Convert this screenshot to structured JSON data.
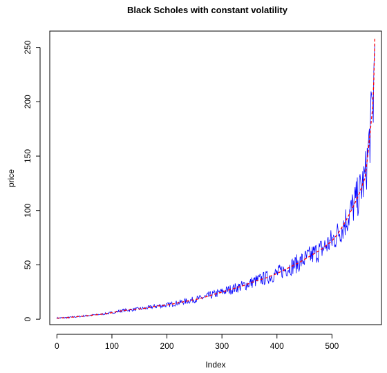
{
  "chart_data": {
    "type": "line",
    "title": "Black Scholes with constant volatility",
    "xlabel": "Index",
    "ylabel": "price",
    "xlim": [
      -13,
      590
    ],
    "ylim": [
      -5,
      265
    ],
    "x_ticks": [
      0,
      100,
      200,
      300,
      400,
      500
    ],
    "x_tick_labels": [
      "0",
      "100",
      "200",
      "300",
      "400",
      "500"
    ],
    "y_ticks": [
      0,
      50,
      100,
      150,
      200,
      250
    ],
    "y_tick_labels": [
      "0",
      "50",
      "100",
      "150",
      "200",
      "250"
    ],
    "grid": false,
    "legend": "none",
    "series": [
      {
        "color": "#0000ff",
        "style": "noisy simulated price",
        "x": [
          0,
          20,
          40,
          60,
          80,
          100,
          120,
          140,
          160,
          180,
          200,
          220,
          240,
          260,
          280,
          300,
          320,
          340,
          360,
          380,
          400,
          420,
          440,
          460,
          480,
          500,
          510,
          520,
          530,
          540,
          550,
          560,
          565,
          570,
          575,
          578
        ],
        "values": [
          1,
          1.5,
          2.5,
          3.5,
          4.5,
          6,
          8,
          9,
          10,
          12,
          13,
          15,
          17,
          19,
          22,
          25,
          28,
          31,
          35,
          38,
          42,
          47,
          52,
          58,
          64,
          72,
          78,
          86,
          95,
          105,
          116,
          130,
          150,
          175,
          200,
          258
        ]
      },
      {
        "color": "#ff0000",
        "style": "dashed theoretical price",
        "x": [
          0,
          20,
          40,
          60,
          80,
          100,
          120,
          140,
          160,
          180,
          200,
          220,
          240,
          260,
          280,
          300,
          320,
          340,
          360,
          380,
          400,
          420,
          440,
          460,
          480,
          500,
          510,
          520,
          530,
          540,
          550,
          560,
          565,
          570,
          575,
          578
        ],
        "values": [
          1,
          1.5,
          2.5,
          3.5,
          4.5,
          6,
          8,
          9,
          10,
          12,
          13,
          15,
          17,
          19,
          22,
          25,
          28,
          31,
          35,
          38,
          42,
          47,
          52,
          58,
          64,
          72,
          78,
          86,
          95,
          105,
          116,
          130,
          150,
          175,
          200,
          258
        ]
      }
    ]
  }
}
